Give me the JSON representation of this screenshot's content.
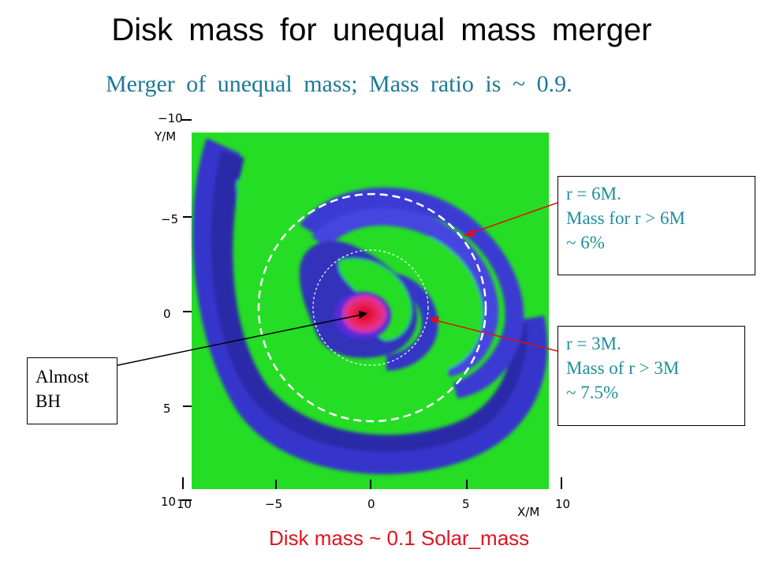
{
  "title": "Disk mass for unequal mass merger",
  "subtitle": "Merger of unequal mass; Mass ratio is ~ 0.9.",
  "footer": "Disk mass ~ 0.1 Solar_mass",
  "plot": {
    "x_axis_label": "X/M",
    "y_axis_label": "Y/M",
    "x_ticks": [
      "10",
      "−5",
      "0",
      "5",
      "10"
    ],
    "y_ticks": [
      "−10",
      "−5",
      "0",
      "5",
      "10"
    ],
    "colors": {
      "background": "#22dd22",
      "disk": "#3030d0",
      "core": "#e03070"
    }
  },
  "annotations": {
    "r6": {
      "lines": [
        "r = 6M.",
        "Mass  for  r > 6M",
        "~ 6%"
      ]
    },
    "r3": {
      "lines": [
        "r = 3M.",
        "Mass  of  r > 3M",
        "~ 7.5%"
      ]
    },
    "bh": {
      "lines": [
        "Almost",
        "BH"
      ]
    }
  }
}
